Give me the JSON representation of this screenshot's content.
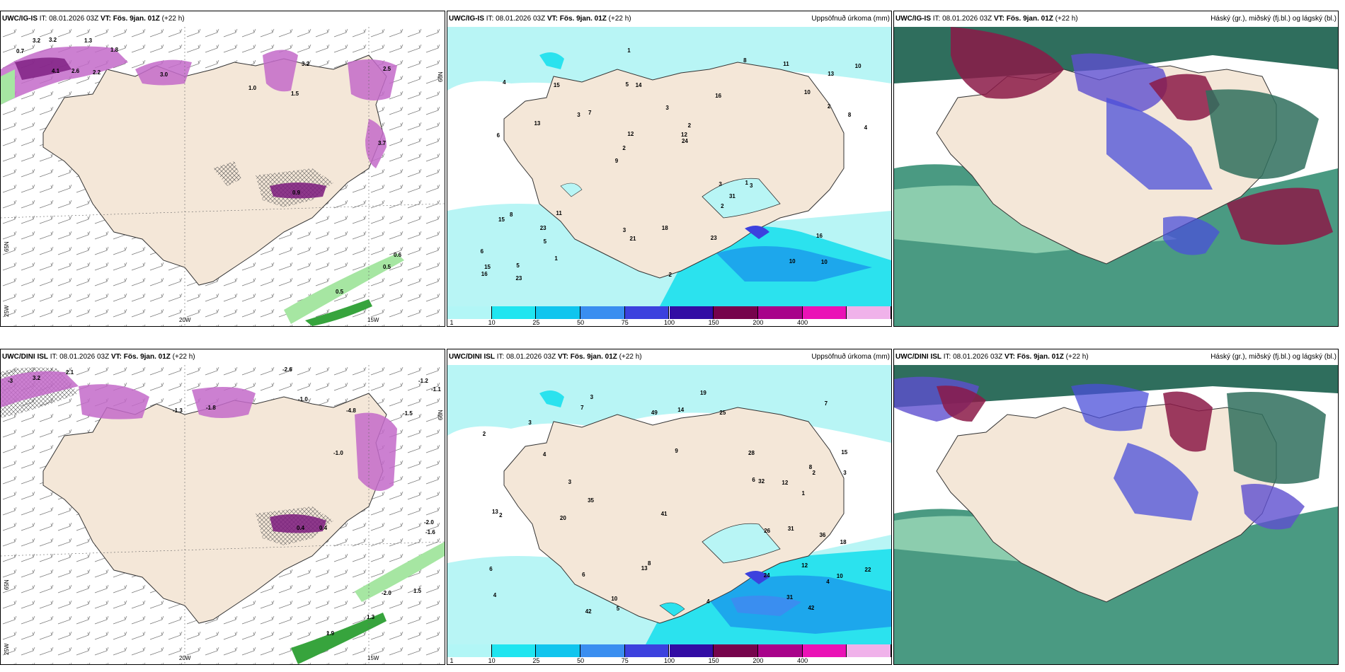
{
  "rows": [
    {
      "model_id": "UWC/IG-IS",
      "it_label": "IT: 08.01.2026 03Z",
      "vt_label": "VT: Fös. 9jan. 01Z",
      "lead": "(+22 h)",
      "wind_values": [
        "0.7",
        "3.2",
        "3.2",
        "1.3",
        "1.8",
        "4.1",
        "2.6",
        "2.2",
        "3.0",
        "3.2",
        "2.5",
        "3.7",
        "1.5",
        "0.6",
        "0.5",
        "0.5",
        "0.9",
        "1.0"
      ],
      "axis_labels": {
        "lon_a": "20W",
        "lon_b": "15W",
        "lat_a": "65N",
        "lat_b": "66N",
        "lat_c": "25W"
      },
      "precip_values": [
        "10",
        "6",
        "13",
        "9",
        "16",
        "5",
        "5",
        "3",
        "8",
        "7",
        "6",
        "5",
        "14",
        "2",
        "3",
        "4",
        "1",
        "4",
        "3",
        "2",
        "2",
        "3",
        "12",
        "15",
        "8",
        "11",
        "10",
        "16",
        "1",
        "2",
        "3",
        "13",
        "2",
        "1",
        "8",
        "12",
        "15",
        "21",
        "24",
        "15",
        "10",
        "10",
        "31",
        "23",
        "23",
        "23",
        "16",
        "18",
        "11"
      ],
      "cloud_title": "Háský (gr.), miðský (fj.bl.) og lágský (bl.)"
    },
    {
      "model_id": "UWC/DINI ISL",
      "it_label": "IT: 08.01.2026 03Z",
      "vt_label": "VT: Fös. 9jan. 01Z",
      "lead": "(+22 h)",
      "wind_values": [
        "-3",
        "3.2",
        "2.1",
        "-1.3",
        "-1.8",
        "-2.6",
        "-1.2",
        "-1.0",
        "-4.8",
        "-1.5",
        "-1.0",
        "-2.0",
        "1.3",
        "1.5",
        "0.4",
        "0.4",
        "1.9",
        "-2.0",
        "-1.6",
        "-1.1"
      ],
      "axis_labels": {
        "lon_a": "20W",
        "lon_b": "15W",
        "lat_a": "65N",
        "lat_b": "66N",
        "lat_c": "25W"
      },
      "precip_values": [
        "12",
        "15",
        "10",
        "9",
        "4",
        "3",
        "8",
        "6",
        "7",
        "4",
        "3",
        "2",
        "1",
        "5",
        "6",
        "3",
        "4",
        "7",
        "8",
        "2",
        "13",
        "2",
        "4",
        "6",
        "10",
        "13",
        "19",
        "25",
        "28",
        "22",
        "20",
        "24",
        "42",
        "41",
        "36",
        "31",
        "32",
        "49",
        "42",
        "35",
        "31",
        "12",
        "14",
        "3",
        "18",
        "26"
      ],
      "cloud_title": "Háský (gr.), miðský (fj.bl.) og lágský (bl.)"
    }
  ],
  "precip_title": "Uppsöfnuð úrkoma (mm)",
  "colorbar": {
    "labels": [
      "1",
      "10",
      "25",
      "50",
      "75",
      "100",
      "150",
      "200",
      "400"
    ],
    "colors": [
      "#b2f6f6",
      "#1fe5f0",
      "#10c5ee",
      "#3a8ef0",
      "#3c41de",
      "#320ca4",
      "#76034c",
      "#a8028a",
      "#ea12b6",
      "#f0b2ea"
    ]
  },
  "colors": {
    "land": "#f4e7d8",
    "sea": "#ffffff",
    "precip_light": "#b8f5f5",
    "precip_mid": "#2be2ee",
    "precip_high": "#1da7ec"
  }
}
